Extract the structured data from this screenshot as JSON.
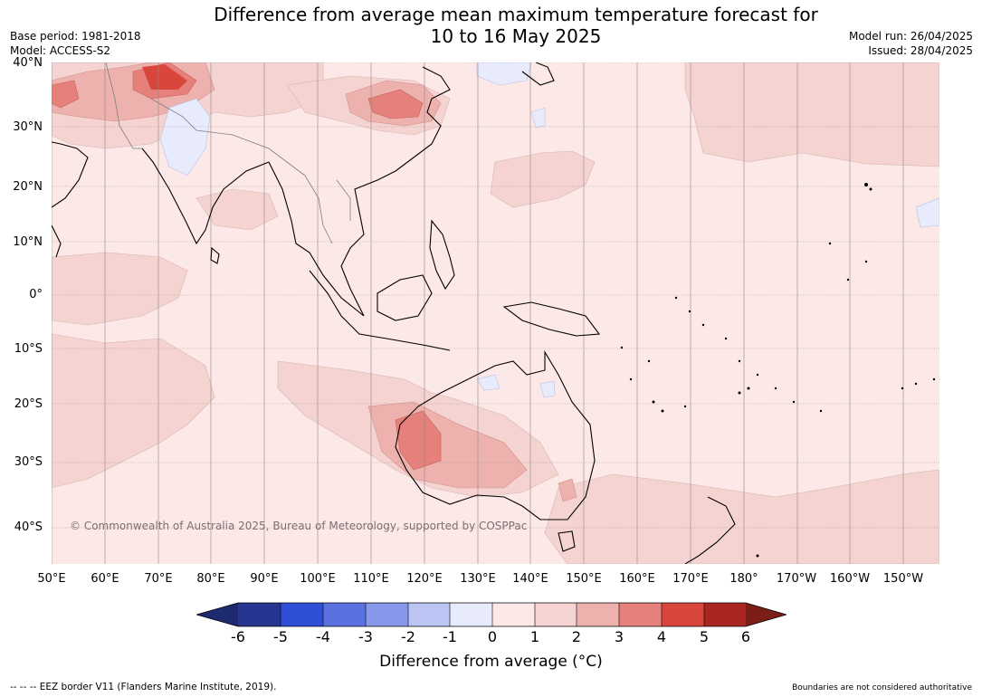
{
  "title": {
    "line1": "Difference from average mean maximum temperature forecast for",
    "line2": "10 to 16 May 2025"
  },
  "meta": {
    "base_period": "Base period: 1981-2018",
    "model": "Model: ACCESS-S2",
    "model_run": "Model run: 26/04/2025",
    "issued": "Issued: 28/04/2025"
  },
  "lat_labels": [
    "40°N",
    "30°N",
    "20°N",
    "10°N",
    "0°",
    "10°S",
    "20°S",
    "30°S",
    "40°S"
  ],
  "lon_labels": [
    "50°E",
    "60°E",
    "70°E",
    "80°E",
    "90°E",
    "100°E",
    "110°E",
    "120°E",
    "130°E",
    "140°E",
    "150°E",
    "160°E",
    "170°E",
    "180°",
    "170°W",
    "160°W",
    "150°W"
  ],
  "copyright": "© Commonwealth of Australia 2025, Bureau of Meteorology, supported by COSPPac",
  "colorbar": {
    "ticks": [
      "-6",
      "-5",
      "-4",
      "-3",
      "-2",
      "-1",
      "0",
      "1",
      "2",
      "3",
      "4",
      "5",
      "6"
    ],
    "colors": [
      "#26358f",
      "#2e4fd6",
      "#5a72e0",
      "#8797ea",
      "#bcc4f3",
      "#e8ebfb",
      "#fbe8e7",
      "#f4d3d1",
      "#eeb2ae",
      "#e6807a",
      "#d9473c",
      "#aa2721"
    ],
    "low_extend_color": "#1e2a70",
    "high_extend_color": "#7a1e17",
    "label": "Difference from average (°C)"
  },
  "footer": {
    "eez": "--  --  -- EEZ border V11 (Flanders Marine Institute, 2019).",
    "boundaries": "Boundaries are not considered authoritative"
  }
}
